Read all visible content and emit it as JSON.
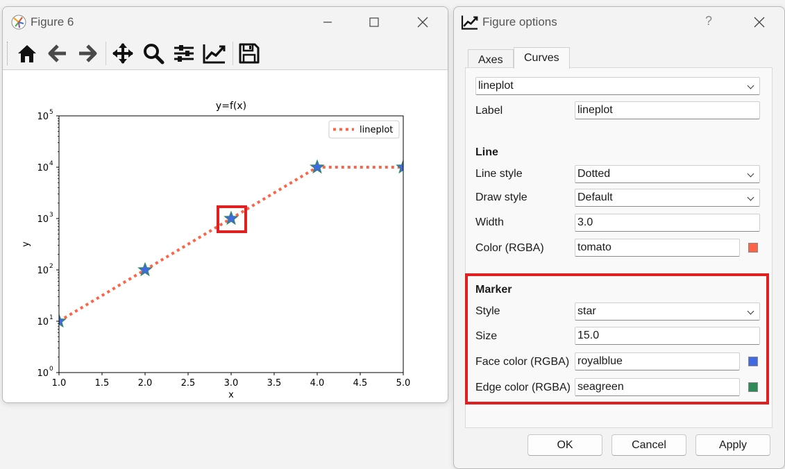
{
  "figure_window": {
    "title": "Figure 6",
    "toolbar": {
      "home_icon": "home-icon",
      "back_icon": "arrow-left-icon",
      "forward_icon": "arrow-right-icon",
      "pan_icon": "move-icon",
      "zoom_icon": "magnifier-icon",
      "subplots_icon": "sliders-icon",
      "options_icon": "line-chart-icon",
      "save_icon": "floppy-disk-icon"
    }
  },
  "chart_data": {
    "type": "line",
    "title": "y=f(x)",
    "xlabel": "x",
    "ylabel": "y",
    "y_scale": "log",
    "xlim": [
      1.0,
      5.0
    ],
    "ylim": [
      1,
      100000
    ],
    "x_ticks": [
      "1.0",
      "1.5",
      "2.0",
      "2.5",
      "3.0",
      "3.5",
      "4.0",
      "4.5",
      "5.0"
    ],
    "y_ticks": [
      {
        "base": "10",
        "exp": "0"
      },
      {
        "base": "10",
        "exp": "1"
      },
      {
        "base": "10",
        "exp": "2"
      },
      {
        "base": "10",
        "exp": "3"
      },
      {
        "base": "10",
        "exp": "4"
      },
      {
        "base": "10",
        "exp": "5"
      }
    ],
    "legend_position": "top-right",
    "series": [
      {
        "name": "lineplot",
        "x": [
          1,
          2,
          3,
          4,
          5
        ],
        "y": [
          10,
          100,
          1000,
          10000,
          10000
        ],
        "line_style": "dotted",
        "line_color": "#ff6347",
        "marker": "star",
        "marker_face": "#4169e1",
        "marker_edge": "#2e8b57"
      }
    ],
    "highlighted_point": {
      "x": 3,
      "y": 1000
    }
  },
  "options_dialog": {
    "title": "Figure options",
    "help_label": "?",
    "tabs": [
      {
        "label": "Axes"
      },
      {
        "label": "Curves"
      }
    ],
    "curve_select": "lineplot",
    "label_label": "Label",
    "label_value": "lineplot",
    "line_heading": "Line",
    "line_style_label": "Line style",
    "line_style_value": "Dotted",
    "draw_style_label": "Draw style",
    "draw_style_value": "Default",
    "width_label": "Width",
    "width_value": "3.0",
    "color_label": "Color (RGBA)",
    "color_value": "tomato",
    "marker_heading": "Marker",
    "marker_style_label": "Style",
    "marker_style_value": "star",
    "marker_size_label": "Size",
    "marker_size_value": "15.0",
    "face_color_label": "Face color (RGBA)",
    "face_color_value": "royalblue",
    "edge_color_label": "Edge color (RGBA)",
    "edge_color_value": "seagreen",
    "ok_label": "OK",
    "cancel_label": "Cancel",
    "apply_label": "Apply"
  },
  "colors": {
    "highlight": "#e02020",
    "tomato": "#ff6347",
    "royalblue": "#4169e1",
    "seagreen": "#2e8b57"
  }
}
